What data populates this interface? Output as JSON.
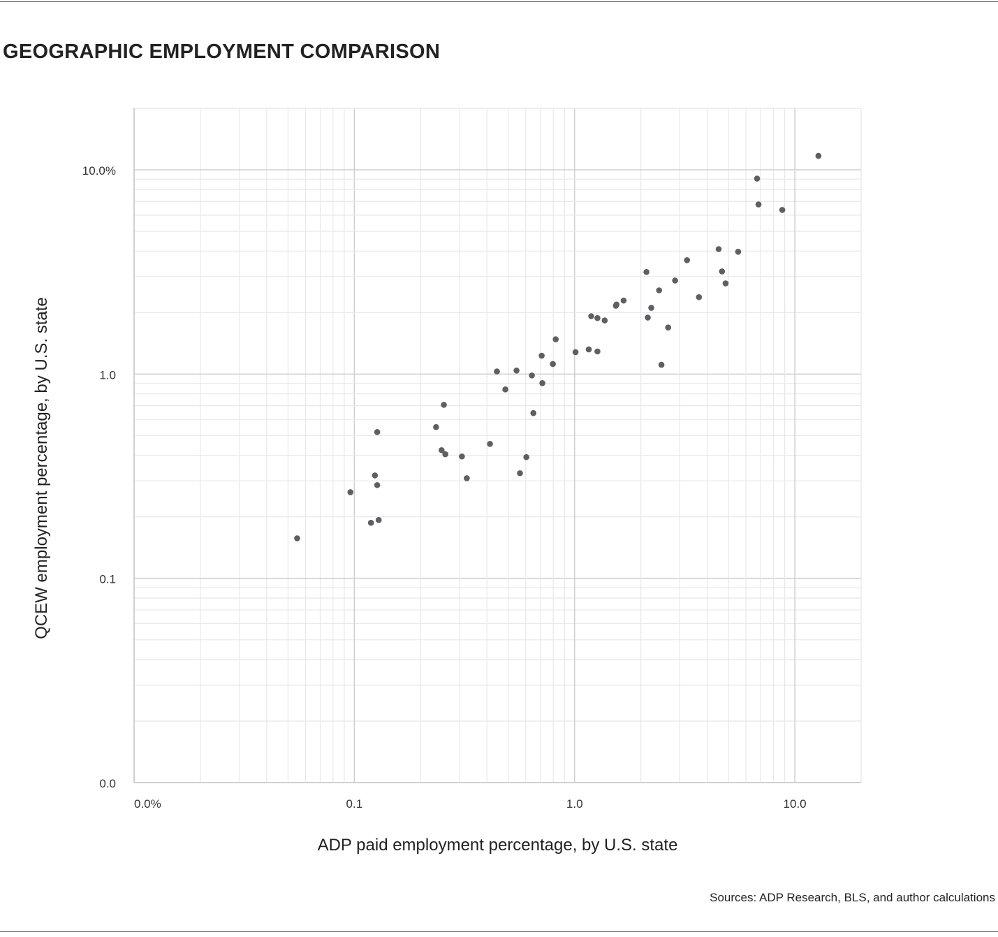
{
  "chart_data": {
    "type": "scatter",
    "title": "GEOGRAPHIC EMPLOYMENT COMPARISON",
    "xlabel": "ADP paid employment percentage, by U.S. state",
    "ylabel": "QCEW employment percentage, by U.S. state",
    "source": "Sources: ADP Research, BLS, and author calculations",
    "xscale": "log",
    "yscale": "log",
    "xlim": [
      0.01,
      20
    ],
    "ylim": [
      0.01,
      20
    ],
    "grid": true,
    "x_ticks": [
      {
        "value": 0.01,
        "label": "0.0%"
      },
      {
        "value": 0.1,
        "label": "0.1"
      },
      {
        "value": 1,
        "label": "1.0"
      },
      {
        "value": 10,
        "label": "10.0"
      }
    ],
    "y_ticks": [
      {
        "value": 0.01,
        "label": "0.0"
      },
      {
        "value": 0.1,
        "label": "0.1"
      },
      {
        "value": 1,
        "label": "1.0"
      },
      {
        "value": 10,
        "label": "10.0%"
      }
    ],
    "point_color": "#5f5f63",
    "points": [
      [
        0.055,
        0.157
      ],
      [
        0.096,
        0.264
      ],
      [
        0.119,
        0.187
      ],
      [
        0.129,
        0.193
      ],
      [
        0.124,
        0.319
      ],
      [
        0.127,
        0.286
      ],
      [
        0.127,
        0.52
      ],
      [
        0.235,
        0.55
      ],
      [
        0.255,
        0.707
      ],
      [
        0.249,
        0.424
      ],
      [
        0.259,
        0.405
      ],
      [
        0.308,
        0.395
      ],
      [
        0.324,
        0.309
      ],
      [
        0.413,
        0.455
      ],
      [
        0.444,
        1.03
      ],
      [
        0.485,
        0.841
      ],
      [
        0.545,
        1.04
      ],
      [
        0.565,
        0.327
      ],
      [
        0.604,
        0.392
      ],
      [
        0.64,
        0.984
      ],
      [
        0.65,
        0.644
      ],
      [
        0.709,
        1.23
      ],
      [
        0.714,
        0.903
      ],
      [
        0.797,
        1.12
      ],
      [
        0.821,
        1.48
      ],
      [
        1.01,
        1.28
      ],
      [
        1.16,
        1.32
      ],
      [
        1.27,
        1.29
      ],
      [
        1.19,
        1.92
      ],
      [
        1.27,
        1.88
      ],
      [
        1.37,
        1.83
      ],
      [
        1.54,
        2.16
      ],
      [
        1.55,
        2.19
      ],
      [
        1.67,
        2.29
      ],
      [
        2.12,
        3.16
      ],
      [
        2.15,
        1.89
      ],
      [
        2.23,
        2.11
      ],
      [
        2.42,
        2.57
      ],
      [
        2.48,
        1.11
      ],
      [
        2.66,
        1.69
      ],
      [
        2.86,
        2.87
      ],
      [
        3.24,
        3.61
      ],
      [
        3.67,
        2.38
      ],
      [
        4.51,
        4.09
      ],
      [
        4.67,
        3.18
      ],
      [
        4.85,
        2.78
      ],
      [
        5.53,
        3.97
      ],
      [
        6.74,
        9.06
      ],
      [
        6.84,
        6.77
      ],
      [
        8.77,
        6.36
      ],
      [
        12.8,
        11.7
      ]
    ]
  }
}
